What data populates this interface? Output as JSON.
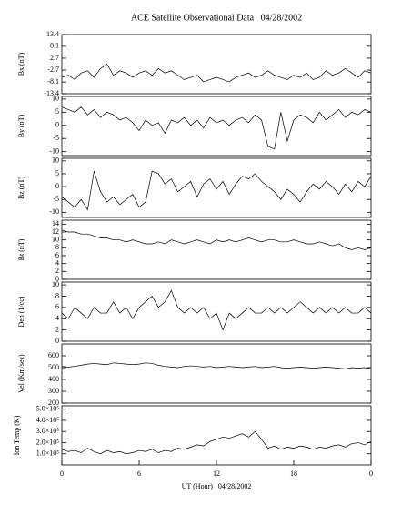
{
  "chart_data": [
    {
      "type": "line",
      "title": "ACE Satellite Observational Data   04/28/2002",
      "ylabel": "Bx (nT)",
      "color": "#000000",
      "x": [
        0,
        0.5,
        1,
        1.5,
        2,
        2.5,
        3,
        3.5,
        4,
        4.5,
        5,
        5.5,
        6,
        6.5,
        7,
        7.5,
        8,
        8.5,
        9,
        9.5,
        10,
        10.5,
        11,
        11.5,
        12,
        12.5,
        13,
        13.5,
        14,
        14.5,
        15,
        15.5,
        16,
        16.5,
        17,
        17.5,
        18,
        18.5,
        19,
        19.5,
        20,
        20.5,
        21,
        21.5,
        22,
        22.5,
        23,
        23.5,
        24
      ],
      "values": [
        -6,
        -5,
        -7,
        -4,
        -3,
        -6,
        -2,
        0,
        -5,
        -3,
        -4,
        -6,
        -4,
        -3,
        -5,
        -2,
        -4,
        -3,
        -5,
        -7,
        -6,
        -5,
        -8,
        -7,
        -6,
        -7,
        -8,
        -6,
        -5,
        -4,
        -6,
        -5,
        -3,
        -5,
        -6,
        -7,
        -5,
        -6,
        -4,
        -7,
        -6,
        -3,
        -5,
        -4,
        -2,
        -4,
        -6,
        -3,
        -4
      ],
      "xlim": [
        0,
        24
      ],
      "ylim": [
        -13.4,
        13.4
      ],
      "yticks": [
        13.4,
        8.1,
        2.7,
        -2.7,
        -8.1,
        -13.4
      ]
    },
    {
      "type": "line",
      "ylabel": "By (nT)",
      "color": "#000000",
      "x": [
        0,
        0.5,
        1,
        1.5,
        2,
        2.5,
        3,
        3.5,
        4,
        4.5,
        5,
        5.5,
        6,
        6.5,
        7,
        7.5,
        8,
        8.5,
        9,
        9.5,
        10,
        10.5,
        11,
        11.5,
        12,
        12.5,
        13,
        13.5,
        14,
        14.5,
        15,
        15.5,
        16,
        16.5,
        17,
        17.5,
        18,
        18.5,
        19,
        19.5,
        20,
        20.5,
        21,
        21.5,
        22,
        22.5,
        23,
        23.5,
        24
      ],
      "values": [
        7,
        6,
        5,
        7,
        4,
        6,
        3,
        5,
        4,
        2,
        3,
        1,
        -2,
        2,
        0,
        1,
        -3,
        2,
        1,
        3,
        0,
        2,
        -1,
        3,
        1,
        2,
        0,
        2,
        3,
        1,
        4,
        2,
        -8,
        -9,
        5,
        -6,
        2,
        4,
        3,
        1,
        5,
        2,
        4,
        6,
        3,
        5,
        4,
        6,
        5
      ],
      "xlim": [
        0,
        24
      ],
      "ylim": [
        -11.5,
        11
      ],
      "yticks": [
        10,
        5,
        0,
        -5,
        -10
      ]
    },
    {
      "type": "line",
      "ylabel": "Bz (nT)",
      "color": "#000000",
      "x": [
        0,
        0.5,
        1,
        1.5,
        2,
        2.5,
        3,
        3.5,
        4,
        4.5,
        5,
        5.5,
        6,
        6.5,
        7,
        7.5,
        8,
        8.5,
        9,
        9.5,
        10,
        10.5,
        11,
        11.5,
        12,
        12.5,
        13,
        13.5,
        14,
        14.5,
        15,
        15.5,
        16,
        16.5,
        17,
        17.5,
        18,
        18.5,
        19,
        19.5,
        20,
        20.5,
        21,
        21.5,
        22,
        22.5,
        23,
        23.5,
        24
      ],
      "values": [
        -4,
        -6,
        -8,
        -5,
        -9,
        6,
        -2,
        -6,
        -4,
        -7,
        -5,
        -3,
        -8,
        -6,
        6,
        5,
        1,
        3,
        -2,
        0,
        2,
        -4,
        1,
        3,
        -1,
        2,
        -3,
        1,
        4,
        3,
        5,
        2,
        0,
        -2,
        -5,
        -1,
        -3,
        -6,
        -2,
        1,
        -1,
        2,
        0,
        -3,
        1,
        -2,
        2,
        0,
        4
      ],
      "xlim": [
        0,
        24
      ],
      "ylim": [
        -12,
        11
      ],
      "yticks": [
        10,
        5,
        0,
        -5,
        -10
      ]
    },
    {
      "type": "line",
      "ylabel": "Bt (nT)",
      "color": "#000000",
      "x": [
        0,
        0.5,
        1,
        1.5,
        2,
        2.5,
        3,
        3.5,
        4,
        4.5,
        5,
        5.5,
        6,
        6.5,
        7,
        7.5,
        8,
        8.5,
        9,
        9.5,
        10,
        10.5,
        11,
        11.5,
        12,
        12.5,
        13,
        13.5,
        14,
        14.5,
        15,
        15.5,
        16,
        16.5,
        17,
        17.5,
        18,
        18.5,
        19,
        19.5,
        20,
        20.5,
        21,
        21.5,
        22,
        22.5,
        23,
        23.5,
        24
      ],
      "values": [
        12.5,
        12,
        12,
        11.5,
        11.5,
        11,
        10.5,
        10.5,
        10,
        10,
        9.5,
        10,
        9.5,
        9,
        9,
        9.5,
        9,
        10,
        9.5,
        9,
        9.5,
        10,
        9.5,
        9,
        10,
        9.5,
        10,
        9.5,
        10,
        10.5,
        10,
        9.5,
        10,
        10,
        9.5,
        9.5,
        10,
        9.5,
        9,
        9,
        9.5,
        9,
        8.5,
        9,
        8,
        7.5,
        8,
        7.5,
        8
      ],
      "xlim": [
        0,
        24
      ],
      "ylim": [
        0,
        15
      ],
      "yticks": [
        14,
        12,
        10,
        8,
        6,
        4,
        2,
        0
      ]
    },
    {
      "type": "line",
      "ylabel": "Den (1/cc)",
      "color": "#000000",
      "x": [
        0,
        0.5,
        1,
        1.5,
        2,
        2.5,
        3,
        3.5,
        4,
        4.5,
        5,
        5.5,
        6,
        6.5,
        7,
        7.5,
        8,
        8.5,
        9,
        9.5,
        10,
        10.5,
        11,
        11.5,
        12,
        12.5,
        13,
        13.5,
        14,
        14.5,
        15,
        15.5,
        16,
        16.5,
        17,
        17.5,
        18,
        18.5,
        19,
        19.5,
        20,
        20.5,
        21,
        21.5,
        22,
        22.5,
        23,
        23.5,
        24
      ],
      "values": [
        5,
        4,
        6,
        5,
        4,
        6,
        5,
        5,
        7,
        5,
        6,
        4,
        6,
        7,
        8,
        6,
        7,
        9,
        6,
        5,
        6,
        5,
        6,
        4,
        5,
        2,
        5,
        4,
        5,
        6,
        5,
        5,
        6,
        5,
        6,
        5,
        6,
        7,
        6,
        5,
        6,
        5,
        6,
        5,
        6,
        5,
        5,
        6,
        5
      ],
      "xlim": [
        0,
        24
      ],
      "ylim": [
        0,
        10.5
      ],
      "yticks": [
        10,
        8,
        6,
        4,
        2,
        0
      ]
    },
    {
      "type": "line",
      "ylabel": "Vel (Km/sec)",
      "color": "#000000",
      "x": [
        0,
        0.5,
        1,
        1.5,
        2,
        2.5,
        3,
        3.5,
        4,
        4.5,
        5,
        5.5,
        6,
        6.5,
        7,
        7.5,
        8,
        8.5,
        9,
        9.5,
        10,
        10.5,
        11,
        11.5,
        12,
        12.5,
        13,
        13.5,
        14,
        14.5,
        15,
        15.5,
        16,
        16.5,
        17,
        17.5,
        18,
        18.5,
        19,
        19.5,
        20,
        20.5,
        21,
        21.5,
        22,
        22.5,
        23,
        23.5,
        24
      ],
      "values": [
        510,
        505,
        510,
        520,
        530,
        535,
        530,
        525,
        540,
        535,
        530,
        525,
        530,
        540,
        535,
        520,
        510,
        505,
        500,
        510,
        515,
        510,
        505,
        510,
        500,
        505,
        510,
        505,
        500,
        505,
        510,
        500,
        505,
        510,
        500,
        495,
        500,
        505,
        500,
        495,
        500,
        505,
        500,
        495,
        490,
        500,
        495,
        500,
        490
      ],
      "xlim": [
        0,
        24
      ],
      "ylim": [
        200,
        700
      ],
      "yticks": [
        600,
        500,
        400,
        300,
        200
      ]
    },
    {
      "type": "line",
      "ylabel": "Ion Temp (K)",
      "xlabel": "UT (Hour)   04/28/2002",
      "color": "#000000",
      "x": [
        0,
        0.5,
        1,
        1.5,
        2,
        2.5,
        3,
        3.5,
        4,
        4.5,
        5,
        5.5,
        6,
        6.5,
        7,
        7.5,
        8,
        8.5,
        9,
        9.5,
        10,
        10.5,
        11,
        11.5,
        12,
        12.5,
        13,
        13.5,
        14,
        14.5,
        15,
        15.5,
        16,
        16.5,
        17,
        17.5,
        18,
        18.5,
        19,
        19.5,
        20,
        20.5,
        21,
        21.5,
        22,
        22.5,
        23,
        23.5,
        24
      ],
      "values": [
        140000,
        120000,
        130000,
        110000,
        150000,
        120000,
        100000,
        130000,
        110000,
        120000,
        100000,
        110000,
        130000,
        120000,
        140000,
        110000,
        130000,
        120000,
        150000,
        140000,
        160000,
        180000,
        170000,
        210000,
        230000,
        250000,
        240000,
        260000,
        280000,
        250000,
        300000,
        230000,
        150000,
        170000,
        140000,
        160000,
        150000,
        170000,
        160000,
        140000,
        160000,
        150000,
        170000,
        180000,
        160000,
        190000,
        200000,
        180000,
        210000
      ],
      "xlim": [
        0,
        24
      ],
      "ylim": [
        0,
        530000
      ],
      "yticks": [
        {
          "value": 500000,
          "label": "5.0×10⁵"
        },
        {
          "value": 400000,
          "label": "4.0×10⁵"
        },
        {
          "value": 300000,
          "label": "3.0×10⁵"
        },
        {
          "value": 200000,
          "label": "2.0×10⁵"
        },
        {
          "value": 100000,
          "label": "1.0×10⁵"
        }
      ],
      "xticks": [
        0,
        6,
        12,
        18,
        {
          "value": 24,
          "label": "0"
        }
      ]
    }
  ]
}
